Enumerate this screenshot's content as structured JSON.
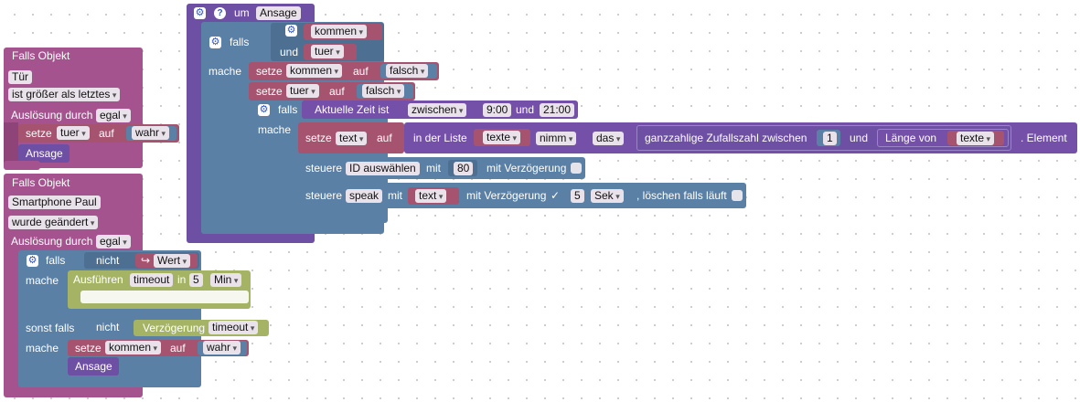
{
  "event_tuer": {
    "header": "Falls Objekt",
    "object": "Tür",
    "condition": "ist größer als letztes",
    "trigger_label": "Auslösung durch",
    "trigger_value": "egal",
    "set_kw": "setze",
    "var": "tuer",
    "to_kw": "auf",
    "value": "wahr",
    "call": "Ansage"
  },
  "event_paul": {
    "header": "Falls Objekt",
    "object": "Smartphone Paul",
    "condition": "wurde geändert",
    "trigger_label": "Auslösung durch",
    "trigger_value": "egal",
    "if_kw": "falls",
    "not_kw": "nicht",
    "value_arrow": "↪",
    "value_label": "Wert",
    "do_kw": "mache",
    "exec_label": "Ausführen",
    "exec_name": "timeout",
    "exec_in": "in",
    "exec_num": "5",
    "exec_unit": "Min",
    "elseif_kw": "sonst falls",
    "not2_kw": "nicht",
    "delay_label": "Verzögerung",
    "delay_name": "timeout",
    "do2_kw": "mache",
    "set_kw": "setze",
    "var": "kommen",
    "to_kw": "auf",
    "value": "wahr",
    "call": "Ansage"
  },
  "func_ansage": {
    "header_kw": "um",
    "name": "Ansage",
    "if_kw": "falls",
    "var1": "kommen",
    "and_kw": "und",
    "var2": "tuer",
    "do_kw": "mache",
    "set1_kw": "setze",
    "set1_var": "kommen",
    "set1_to": "auf",
    "set1_val": "falsch",
    "set2_kw": "setze",
    "set2_var": "tuer",
    "set2_to": "auf",
    "set2_val": "falsch",
    "if2_kw": "falls",
    "time_label": "Aktuelle Zeit ist",
    "time_mode": "zwischen",
    "time_from": "9:00",
    "time_and": "und",
    "time_to": "21:00",
    "do2_kw": "mache",
    "set3_kw": "setze",
    "set3_var": "text",
    "set3_to": "auf",
    "list_label": "in der Liste",
    "list_var": "texte",
    "list_op": "nimm",
    "list_mode": "das",
    "rand_label": "ganzzahlige Zufallszahl zwischen",
    "rand_from": "1",
    "rand_and": "und",
    "len_label": "Länge von",
    "len_var": "texte",
    "elem_label": ". Element",
    "ctrl1_kw": "steuere",
    "ctrl1_target": "ID auswählen",
    "ctrl1_with": "mit",
    "ctrl1_val": "80",
    "ctrl1_delay": "mit Verzögerung",
    "ctrl2_kw": "steuere",
    "ctrl2_target": "speak",
    "ctrl2_with": "mit",
    "ctrl2_var": "text",
    "ctrl2_delay": "mit Verzögerung",
    "ctrl2_check": "✓",
    "ctrl2_num": "5",
    "ctrl2_unit": "Sek",
    "ctrl2_clear": ", löschen falls läuft"
  },
  "icons": {
    "gear": "gear-icon",
    "help": "help-icon"
  },
  "colors": {
    "event": "#a5538e",
    "logic": "#5b80a5",
    "variable": "#a5536f",
    "list": "#7450a8",
    "timeout": "#a5b464"
  }
}
